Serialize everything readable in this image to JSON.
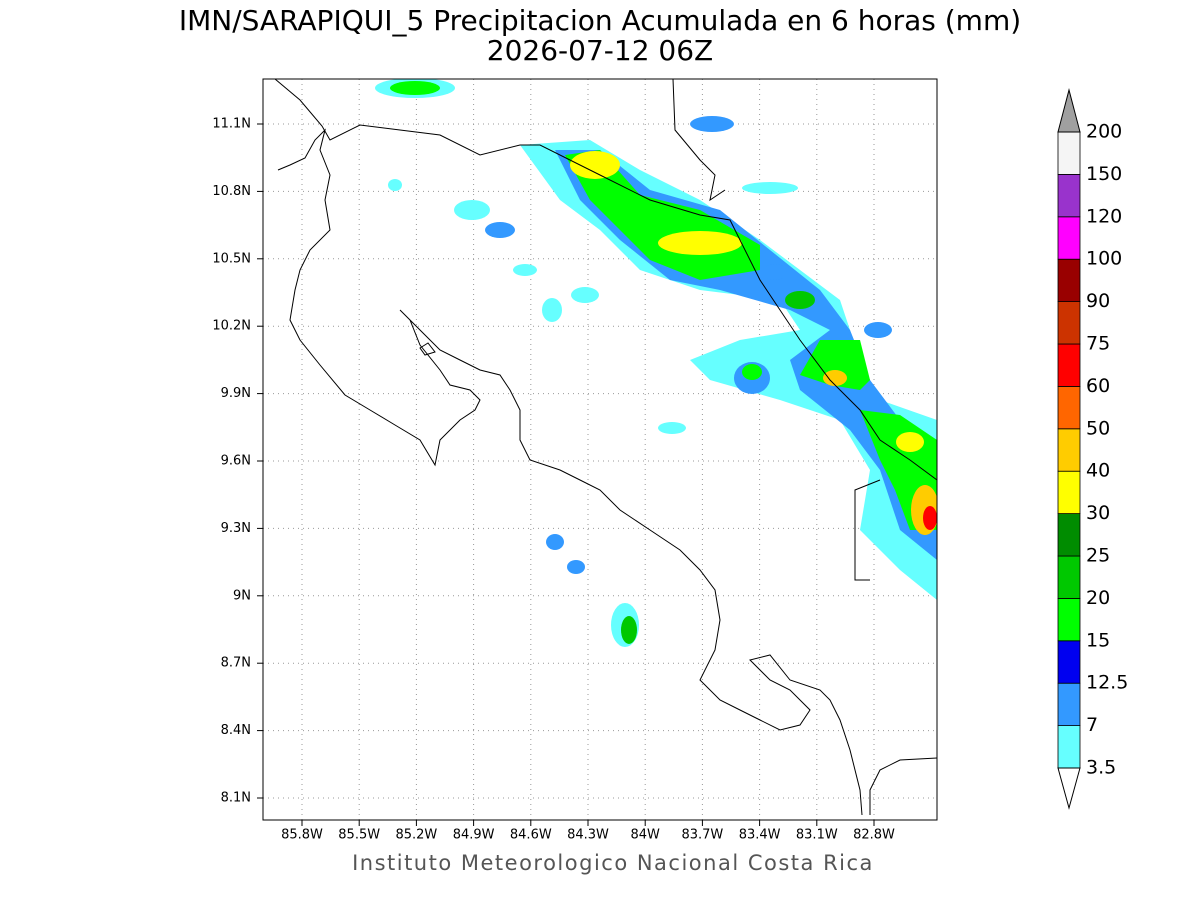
{
  "title": [
    "IMN/SARAPIQUI_5 Precipitacion Acumulada en 6 horas (mm)",
    "2026-07-12 06Z"
  ],
  "footer": "Instituto Meteorologico Nacional Costa Rica",
  "map": {
    "lon_ticks": [
      "85.8W",
      "85.5W",
      "85.2W",
      "84.9W",
      "84.6W",
      "84.3W",
      "84W",
      "83.7W",
      "83.4W",
      "83.1W",
      "82.8W"
    ],
    "lat_ticks": [
      "11.1N",
      "10.8N",
      "10.5N",
      "10.2N",
      "9.9N",
      "9.6N",
      "9.3N",
      "9N",
      "8.7N",
      "8.4N",
      "8.1N"
    ],
    "grid": true
  },
  "colorbar": {
    "levels": [
      3.5,
      7,
      12.5,
      15,
      20,
      25,
      30,
      40,
      50,
      60,
      75,
      90,
      100,
      120,
      150,
      200
    ],
    "colors": [
      "#66ffff",
      "#3399ff",
      "#0000f0",
      "#00ff00",
      "#00c800",
      "#008c00",
      "#ffff00",
      "#ffcc00",
      "#ff6600",
      "#ff0000",
      "#cc3300",
      "#990000",
      "#ff00ff",
      "#9933cc",
      "#f5f5f5"
    ],
    "under_color": "#ffffff",
    "over_color": "#a0a0a0"
  }
}
